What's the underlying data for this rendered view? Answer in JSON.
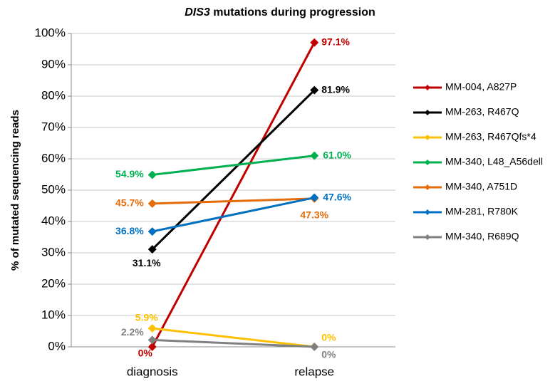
{
  "chart_data": {
    "type": "line",
    "title_italic": "DIS3",
    "title": "mutations during progression",
    "y_label": "% of mutated sequencing reads",
    "categories": [
      "diagnosis",
      "relapse"
    ],
    "ylim": [
      0,
      100
    ],
    "yticks": [
      {
        "value": 0,
        "label": "0%"
      },
      {
        "value": 10,
        "label": "10%"
      },
      {
        "value": 20,
        "label": "20%"
      },
      {
        "value": 30,
        "label": "30%"
      },
      {
        "value": 40,
        "label": "40%"
      },
      {
        "value": 50,
        "label": "50%"
      },
      {
        "value": 60,
        "label": "60%"
      },
      {
        "value": 70,
        "label": "70%"
      },
      {
        "value": 80,
        "label": "80%"
      },
      {
        "value": 90,
        "label": "90%"
      },
      {
        "value": 100,
        "label": "100%"
      }
    ],
    "grid": true,
    "legend": "right",
    "series": [
      {
        "name": "MM-004, A827P",
        "color": "#c00000",
        "values": [
          0,
          97.1
        ],
        "value_labels": [
          "0%",
          "97.1%"
        ]
      },
      {
        "name": "MM-263, R467Q",
        "color": "#000000",
        "values": [
          31.1,
          81.9
        ],
        "value_labels": [
          "31.1%",
          "81.9%"
        ]
      },
      {
        "name": "MM-263, R467Qfs*4",
        "color": "#ffc000",
        "values": [
          5.9,
          0
        ],
        "value_labels": [
          "5.9%",
          "0%"
        ]
      },
      {
        "name": "MM-340, L48_A56dell",
        "color": "#00b050",
        "values": [
          54.9,
          61.0
        ],
        "value_labels": [
          "54.9%",
          "61.0%"
        ]
      },
      {
        "name": "MM-340, A751D",
        "color": "#e46c0a",
        "values": [
          45.7,
          47.3
        ],
        "value_labels": [
          "45.7%",
          "47.3%"
        ]
      },
      {
        "name": "MM-281, R780K",
        "color": "#0070c0",
        "values": [
          36.8,
          47.6
        ],
        "value_labels": [
          "36.8%",
          "47.6%"
        ]
      },
      {
        "name": "MM-340, R689Q",
        "color": "#808080",
        "values": [
          2.2,
          0
        ],
        "value_labels": [
          "2.2%",
          "0%"
        ]
      }
    ]
  }
}
